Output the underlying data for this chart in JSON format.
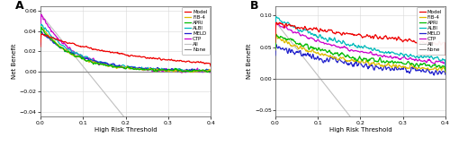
{
  "panel_A": {
    "label": "A",
    "xlim": [
      0.0,
      0.4
    ],
    "ylim": [
      -0.045,
      0.065
    ],
    "yticks": [
      -0.04,
      -0.02,
      0.0,
      0.02,
      0.04,
      0.06
    ],
    "xticks": [
      0.0,
      0.1,
      0.2,
      0.3,
      0.4
    ],
    "xlabel": "High Risk Threshold",
    "ylabel": "Net Benefit"
  },
  "panel_B": {
    "label": "B",
    "xlim": [
      0.0,
      0.4
    ],
    "ylim": [
      -0.06,
      0.115
    ],
    "yticks": [
      -0.05,
      0.0,
      0.05,
      0.1
    ],
    "xticks": [
      0.0,
      0.1,
      0.2,
      0.3,
      0.4
    ],
    "xlabel": "High Risk Threshold",
    "ylabel": "Net Benefit"
  },
  "colors": {
    "Model": "#EE0000",
    "FIB-4": "#DDBB00",
    "APRI": "#00BB00",
    "ALBI": "#00BBBB",
    "MELD": "#2222CC",
    "CTP": "#CC00CC",
    "All": "#C0C0C0",
    "None": "#888888"
  },
  "legend_labels": [
    "Model",
    "FIB-4",
    "APRI",
    "ALBI",
    "MELD",
    "CTP",
    "All",
    "None"
  ]
}
